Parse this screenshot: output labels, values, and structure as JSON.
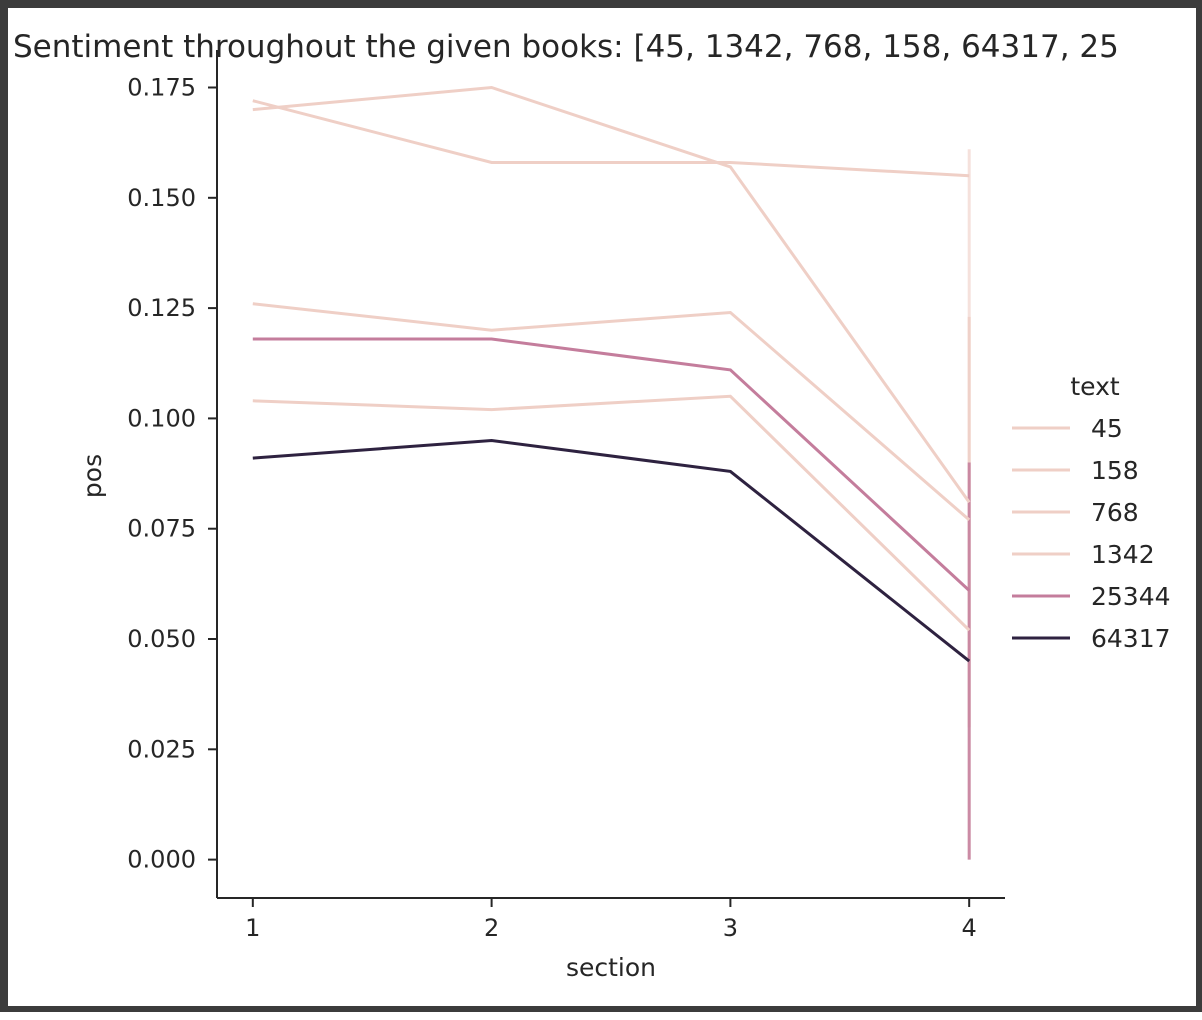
{
  "chart_data": {
    "type": "line",
    "title": "Sentiment throughout the given books: [45, 1342, 768, 158, 64317, 25",
    "xlabel": "section",
    "ylabel": "pos",
    "x": [
      1,
      2,
      3,
      4
    ],
    "xlim": [
      0.85,
      4.15
    ],
    "ylim": [
      -0.0087,
      0.1835
    ],
    "yticks": [
      "0.000",
      "0.025",
      "0.050",
      "0.075",
      "0.100",
      "0.125",
      "0.150",
      "0.175"
    ],
    "ytick_values": [
      0,
      0.025,
      0.05,
      0.075,
      0.1,
      0.125,
      0.15,
      0.175
    ],
    "xticks": [
      "1",
      "2",
      "3",
      "4"
    ],
    "legend_title": "text",
    "legend_position": "right",
    "grid": false,
    "series": [
      {
        "name": "45",
        "color": "#efcfc6",
        "values": [
          0.17,
          0.175,
          0.157,
          0.081
        ]
      },
      {
        "name": "158",
        "color": "#efcfc6",
        "values": [
          0.172,
          0.158,
          0.158,
          0.155
        ]
      },
      {
        "name": "768",
        "color": "#efcfc6",
        "values": [
          0.126,
          0.12,
          0.124,
          0.077
        ]
      },
      {
        "name": "1342",
        "color": "#efcfc6",
        "values": [
          0.104,
          0.102,
          0.105,
          0.052
        ]
      },
      {
        "name": "25344",
        "color": "#c47d9c",
        "values": [
          0.118,
          0.118,
          0.111,
          0.061
        ]
      },
      {
        "name": "64317",
        "color": "#2e2240",
        "values": [
          0.091,
          0.095,
          0.088,
          0.045
        ]
      }
    ],
    "error_bands_at_x4": [
      {
        "low": 0.0,
        "high": 0.161,
        "color": "#f4dcd6"
      },
      {
        "low": 0.03,
        "high": 0.123,
        "color": "#efcfc6"
      },
      {
        "low": 0.0,
        "high": 0.09,
        "color": "#c47d9c"
      }
    ]
  }
}
